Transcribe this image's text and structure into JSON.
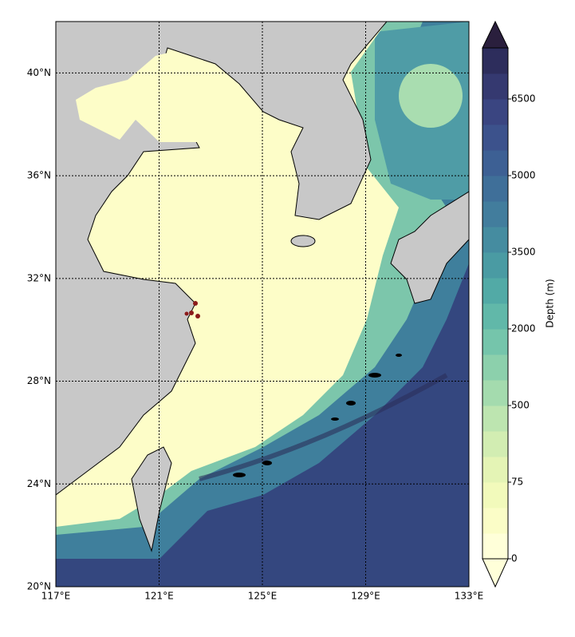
{
  "map": {
    "xticks": [
      {
        "value": 117,
        "label": "117°E"
      },
      {
        "value": 121,
        "label": "121°E"
      },
      {
        "value": 125,
        "label": "125°E"
      },
      {
        "value": 129,
        "label": "129°E"
      },
      {
        "value": 133,
        "label": "133°E"
      }
    ],
    "yticks": [
      {
        "value": 20,
        "label": "20°N"
      },
      {
        "value": 24,
        "label": "24°N"
      },
      {
        "value": 28,
        "label": "28°N"
      },
      {
        "value": 32,
        "label": "32°N"
      },
      {
        "value": 36,
        "label": "36°N"
      },
      {
        "value": 40,
        "label": "40°N"
      }
    ],
    "xlim": [
      117,
      133
    ],
    "ylim": [
      20,
      42
    ],
    "grid": true
  },
  "colorbar": {
    "label": "Depth (m)",
    "ticks": [
      0,
      75,
      500,
      2000,
      3500,
      5000,
      6500
    ],
    "colors": [
      "#ffffd9",
      "#fbfdc7",
      "#f2fabb",
      "#e4f4b5",
      "#d2edb2",
      "#bde5b0",
      "#a4dbae",
      "#8cd0ac",
      "#75c5ab",
      "#61b8a9",
      "#52aaa6",
      "#4a9ba3",
      "#458ca0",
      "#427d9d",
      "#3f6f99",
      "#3d6094",
      "#3c528c",
      "#3a4581",
      "#353970",
      "#2d2d5c"
    ],
    "over_color": "#2a1f3d",
    "under_color": "#ffffd9"
  }
}
